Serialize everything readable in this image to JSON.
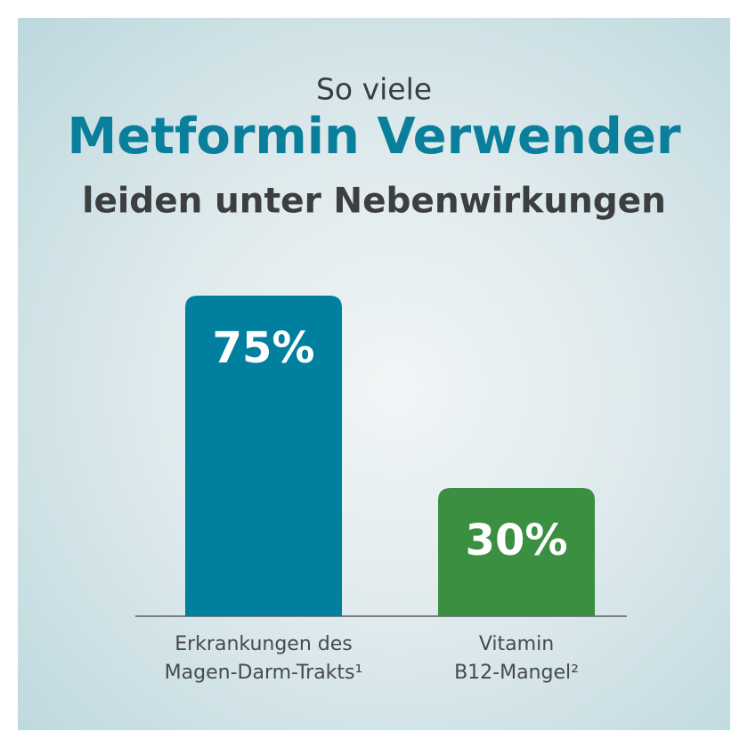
{
  "chart_data": {
    "type": "bar",
    "title": "So viele",
    "subtitle": "Metformin Verwender",
    "subtitle2": "leiden unter Nebenwirkungen",
    "categories": [
      "Erkrankungen des\nMagen-Darm-Trakts¹",
      "Vitamin\nB12-Mangel²"
    ],
    "values": [
      75,
      30
    ],
    "value_labels": [
      "75%",
      "30%"
    ],
    "colors": [
      "#00809e",
      "#3a8f41"
    ]
  }
}
